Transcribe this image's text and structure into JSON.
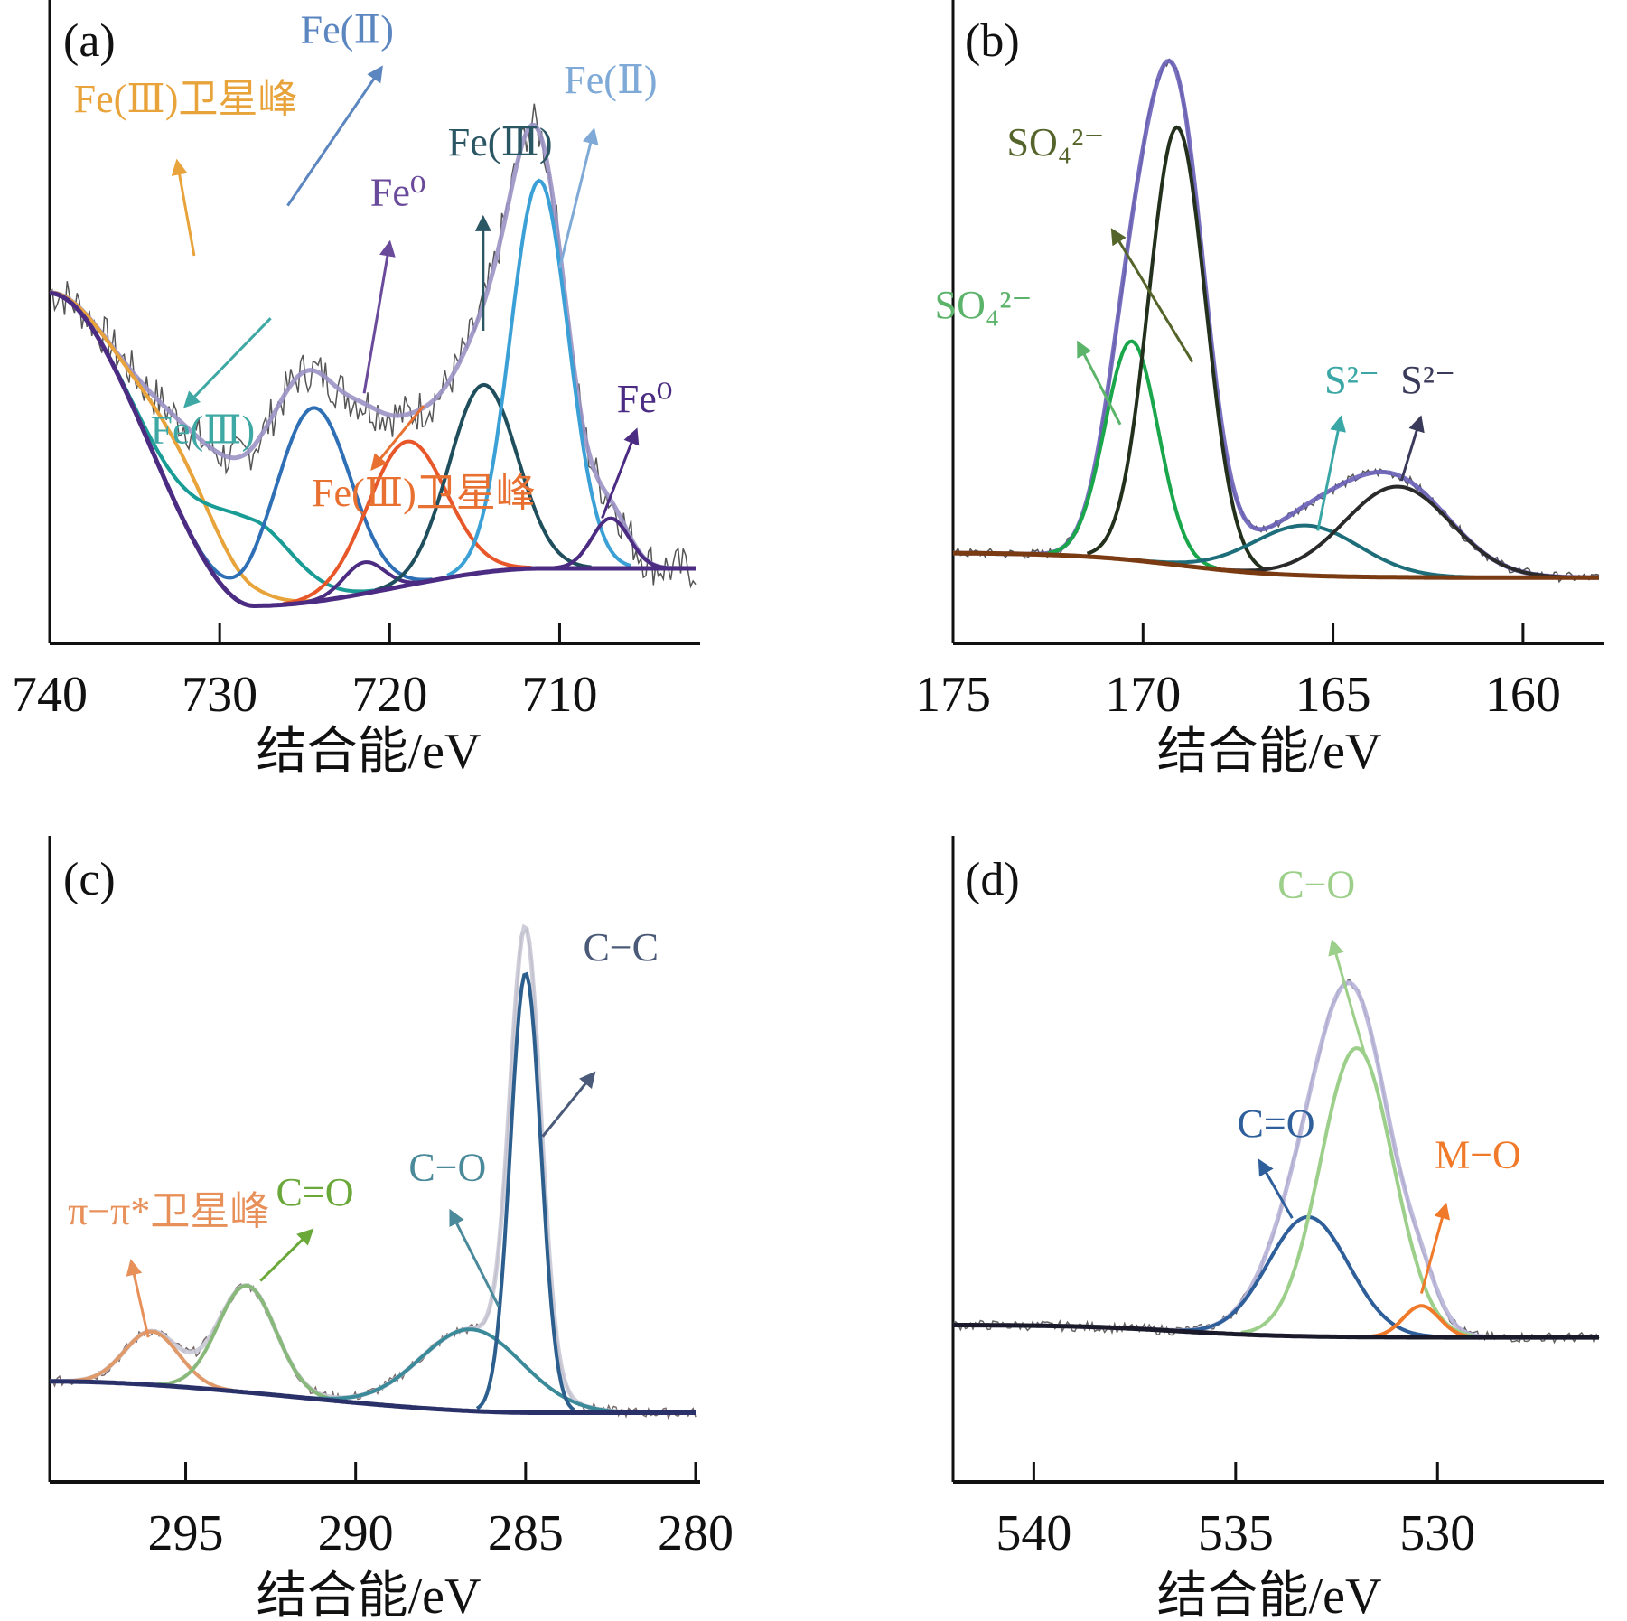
{
  "chart_data": [
    {
      "type": "line",
      "panel_label": "(a)",
      "xlabel": "结合能/eV",
      "ylabel": "",
      "xlim": [
        740,
        702
      ],
      "x_reversed": true,
      "xticks": [
        740,
        730,
        720,
        710
      ],
      "ylim": [
        0,
        1
      ],
      "grid": false,
      "background": {
        "name": "background",
        "color": "#4b2c82",
        "y_left": 0.56,
        "y_right": 0.12,
        "steps": [
          [
            728,
            0.06
          ],
          [
            711,
            0.12
          ]
        ]
      },
      "envelope_color": "#9b92c4",
      "raw_color": "#555555",
      "peaks": [
        {
          "label": "Fe(Ⅲ)卫星峰",
          "center": 732,
          "height": 0.1,
          "width": 2.6,
          "color": "#e8a33a"
        },
        {
          "label": "Fe(Ⅲ)",
          "center": 728.5,
          "height": 0.14,
          "width": 2.6,
          "color": "#1a9c96"
        },
        {
          "label": "Fe(Ⅱ)",
          "center": 724.5,
          "height": 0.31,
          "width": 2.2,
          "color": "#2e6fb5"
        },
        {
          "label": "Fe⁰",
          "center": 721.5,
          "height": 0.05,
          "width": 1.2,
          "color": "#4b2c82"
        },
        {
          "label": "Fe(Ⅲ)卫星峰",
          "center": 719,
          "height": 0.23,
          "width": 2.3,
          "color": "#e8572a"
        },
        {
          "label": "Fe(Ⅲ)",
          "center": 714.5,
          "height": 0.3,
          "width": 2.0,
          "color": "#1f4e5c"
        },
        {
          "label": "Fe(Ⅱ)",
          "center": 711.2,
          "height": 0.62,
          "width": 1.7,
          "color": "#3aa0d6"
        },
        {
          "label": "Fe⁰",
          "center": 707,
          "height": 0.08,
          "width": 1.1,
          "color": "#4b2c82"
        }
      ],
      "annotations": [
        {
          "text": "Fe(Ⅱ)",
          "color": "#5b86c0",
          "text_at": [
            722.5,
            0.96
          ],
          "arrow_from": [
            726,
            0.7
          ],
          "arrow_to": [
            720.5,
            0.92
          ]
        },
        {
          "text": "Fe(Ⅲ)卫星峰",
          "color": "#e8a33a",
          "text_at": [
            732,
            0.85
          ],
          "arrow_from": [
            731.5,
            0.62
          ],
          "arrow_to": [
            732.5,
            0.77
          ]
        },
        {
          "text": "Fe⁰",
          "color": "#6a4a9a",
          "text_at": [
            719.5,
            0.7
          ],
          "arrow_from": [
            721.5,
            0.4
          ],
          "arrow_to": [
            720,
            0.64
          ]
        },
        {
          "text": "Fe(Ⅲ)",
          "color": "#2b5664",
          "text_at": [
            713.5,
            0.78
          ],
          "arrow_from": [
            714.5,
            0.5
          ],
          "arrow_to": [
            714.5,
            0.68
          ]
        },
        {
          "text": "Fe(Ⅱ)",
          "color": "#7fa9d6",
          "text_at": [
            707,
            0.88
          ],
          "arrow_from": [
            710,
            0.6
          ],
          "arrow_to": [
            708,
            0.82
          ]
        },
        {
          "text": "Fe(Ⅲ)",
          "color": "#3ea8a4",
          "text_at": [
            731,
            0.32
          ],
          "arrow_from": [
            727,
            0.52
          ],
          "arrow_to": [
            732,
            0.38
          ]
        },
        {
          "text": "Fe(Ⅲ)卫星峰",
          "color": "#e87030",
          "text_at": [
            718,
            0.22
          ],
          "arrow_from": [
            718,
            0.38
          ],
          "arrow_to": [
            721,
            0.28
          ]
        },
        {
          "text": "Fe⁰",
          "color": "#4b2c82",
          "text_at": [
            705,
            0.37
          ],
          "arrow_from": [
            707.5,
            0.2
          ],
          "arrow_to": [
            705.5,
            0.34
          ]
        }
      ]
    },
    {
      "type": "line",
      "panel_label": "(b)",
      "xlabel": "结合能/eV",
      "ylabel": "",
      "xlim": [
        175,
        158
      ],
      "x_reversed": true,
      "xticks": [
        175,
        170,
        165,
        160
      ],
      "ylim": [
        0,
        1
      ],
      "grid": false,
      "background": {
        "name": "background",
        "color": "#7a3a12",
        "y_left": 0.145,
        "y_right": 0.105
      },
      "envelope_color": "#6a62b8",
      "raw_color": "#555555",
      "peaks": [
        {
          "label": "SO₄²⁻",
          "center": 170.3,
          "height": 0.35,
          "width": 0.7,
          "color": "#1aa64a"
        },
        {
          "label": "SO₄²⁻",
          "center": 169.1,
          "height": 0.7,
          "width": 0.75,
          "color": "#22301c"
        },
        {
          "label": "S²⁻",
          "center": 165.7,
          "height": 0.08,
          "width": 1.4,
          "color": "#1d6e7a"
        },
        {
          "label": "S²⁻",
          "center": 163.3,
          "height": 0.145,
          "width": 1.4,
          "color": "#2a2a2a"
        }
      ],
      "annotations": [
        {
          "text": "SO₄²⁻",
          "color": "#55642a",
          "text_at": [
            172.3,
            0.78
          ],
          "arrow_from": [
            168.7,
            0.45
          ],
          "arrow_to": [
            170.8,
            0.66
          ]
        },
        {
          "text": "SO₄²⁻",
          "color": "#5cb36a",
          "text_at": [
            174.2,
            0.52
          ],
          "arrow_from": [
            170.6,
            0.35
          ],
          "arrow_to": [
            171.7,
            0.48
          ]
        },
        {
          "text": "S²⁻",
          "color": "#3aa6a6",
          "text_at": [
            164.5,
            0.4
          ],
          "arrow_from": [
            165.4,
            0.18
          ],
          "arrow_to": [
            164.8,
            0.36
          ]
        },
        {
          "text": "S²⁻",
          "color": "#3a3a5a",
          "text_at": [
            162.5,
            0.4
          ],
          "arrow_from": [
            163.2,
            0.26
          ],
          "arrow_to": [
            162.7,
            0.36
          ]
        }
      ]
    },
    {
      "type": "line",
      "panel_label": "(c)",
      "xlabel": "结合能/eV",
      "ylabel": "",
      "xlim": [
        299,
        280
      ],
      "x_reversed": true,
      "xticks": [
        295,
        290,
        285,
        280
      ],
      "ylim": [
        0,
        1
      ],
      "grid": false,
      "background": {
        "name": "background",
        "color": "#2a3068",
        "y_left": 0.16,
        "y_right": 0.11,
        "steps": [
          [
            284.5,
            0.11
          ]
        ]
      },
      "envelope_color": "#c9c9d6",
      "raw_color": "#7a6a6a",
      "peaks": [
        {
          "label": "π−π*卫星峰",
          "center": 296,
          "height": 0.085,
          "width": 0.8,
          "color": "#e09a6a"
        },
        {
          "label": "C=O",
          "center": 293.2,
          "height": 0.17,
          "width": 0.85,
          "color": "#88b87a"
        },
        {
          "label": "C−O",
          "center": 286.6,
          "height": 0.13,
          "width": 1.5,
          "color": "#3a8a9a"
        },
        {
          "label": "C−C",
          "center": 285.0,
          "height": 0.7,
          "width": 0.45,
          "color": "#2d5f8e"
        }
      ],
      "annotations": [
        {
          "text": "C−C",
          "color": "#4a5a78",
          "text_at": [
            282.2,
            0.83
          ],
          "arrow_from": [
            284.5,
            0.55
          ],
          "arrow_to": [
            283.0,
            0.65
          ]
        },
        {
          "text": "C−O",
          "color": "#4a8a9a",
          "text_at": [
            287.3,
            0.48
          ],
          "arrow_from": [
            285.8,
            0.28
          ],
          "arrow_to": [
            287.2,
            0.43
          ]
        },
        {
          "text": "C=O",
          "color": "#6aa83a",
          "text_at": [
            291.2,
            0.44
          ],
          "arrow_from": [
            292.8,
            0.32
          ],
          "arrow_to": [
            291.3,
            0.4
          ]
        },
        {
          "text": "π−π*卫星峰",
          "color": "#e8905a",
          "text_at": [
            295.5,
            0.41
          ],
          "arrow_from": [
            296.1,
            0.23
          ],
          "arrow_to": [
            296.6,
            0.35
          ]
        }
      ]
    },
    {
      "type": "line",
      "panel_label": "(d)",
      "xlabel": "结合能/eV",
      "ylabel": "",
      "xlim": [
        542,
        526
      ],
      "x_reversed": true,
      "xticks": [
        540,
        535,
        530
      ],
      "ylim": [
        0,
        1
      ],
      "grid": false,
      "background": {
        "name": "background",
        "color": "#1a1a2a",
        "y_left": 0.25,
        "y_right": 0.23
      },
      "envelope_color": "#b8b4d8",
      "raw_color": "#666666",
      "peaks": [
        {
          "label": "C=O",
          "center": 533.2,
          "height": 0.19,
          "width": 1.0,
          "color": "#2f5f9a"
        },
        {
          "label": "C−O",
          "center": 532.0,
          "height": 0.46,
          "width": 0.9,
          "color": "#9ccf8a"
        },
        {
          "label": "M−O",
          "center": 530.4,
          "height": 0.05,
          "width": 0.45,
          "color": "#f07a2a"
        }
      ],
      "annotations": [
        {
          "text": "C−O",
          "color": "#9ccf8a",
          "text_at": [
            533.0,
            0.93
          ],
          "arrow_from": [
            531.8,
            0.68
          ],
          "arrow_to": [
            532.6,
            0.86
          ]
        },
        {
          "text": "C=O",
          "color": "#2f5f9a",
          "text_at": [
            534.0,
            0.55
          ],
          "arrow_from": [
            533.6,
            0.42
          ],
          "arrow_to": [
            534.4,
            0.51
          ]
        },
        {
          "text": "M−O",
          "color": "#f07a2a",
          "text_at": [
            529.0,
            0.5
          ],
          "arrow_from": [
            530.4,
            0.3
          ],
          "arrow_to": [
            529.8,
            0.44
          ]
        }
      ]
    }
  ]
}
